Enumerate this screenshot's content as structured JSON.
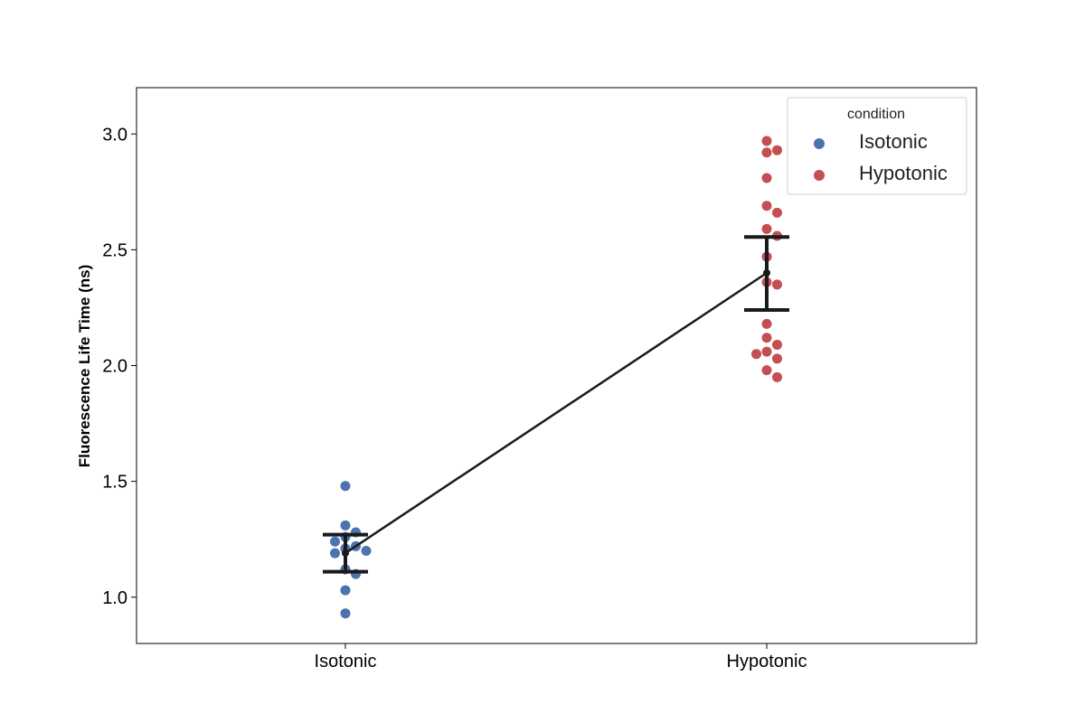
{
  "chart_data": {
    "type": "scatter",
    "title": "",
    "xlabel": "",
    "ylabel": "Fluorescence Life Time (ns)",
    "categories": [
      "Isotonic",
      "Hypotonic"
    ],
    "ylim": [
      0.8,
      3.2
    ],
    "yticks": [
      "1.0",
      "1.5",
      "2.0",
      "2.5",
      "3.0"
    ],
    "grid": false,
    "legend": {
      "title": "condition",
      "position": "top-right"
    },
    "series": [
      {
        "name": "Isotonic",
        "color": "#4C72B0",
        "values": [
          1.48,
          1.31,
          1.28,
          1.26,
          1.24,
          1.22,
          1.21,
          1.2,
          1.19,
          1.12,
          1.1,
          1.03,
          0.93
        ]
      },
      {
        "name": "Hypotonic",
        "color": "#C44E52",
        "values": [
          2.97,
          2.93,
          2.92,
          2.81,
          2.69,
          2.66,
          2.59,
          2.56,
          2.47,
          2.36,
          2.35,
          2.18,
          2.12,
          2.09,
          2.06,
          2.05,
          2.03,
          1.98,
          1.95
        ]
      }
    ],
    "point_estimate": {
      "color": "#1a1a1a",
      "means": [
        1.19,
        2.4
      ],
      "ci_low": [
        1.11,
        2.24
      ],
      "ci_high": [
        1.27,
        2.555
      ]
    }
  }
}
